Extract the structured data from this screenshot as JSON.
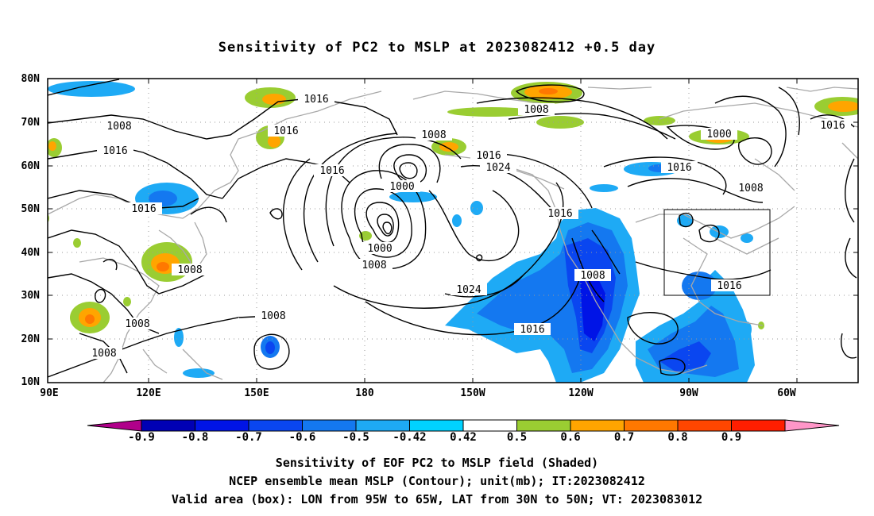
{
  "title": "Sensitivity of PC2 to MSLP at 2023082412 +0.5 day",
  "lat_labels": [
    "80N",
    "70N",
    "60N",
    "50N",
    "40N",
    "30N",
    "20N",
    "10N"
  ],
  "lon_labels": [
    "90E",
    "120E",
    "150E",
    "180",
    "150W",
    "120W",
    "90W",
    "60W"
  ],
  "contour_labels": [
    "1016",
    "1008",
    "1016",
    "1016",
    "1016",
    "1008",
    "1016",
    "1000",
    "1016",
    "1024",
    "1016",
    "1016",
    "1008",
    "1000",
    "1016",
    "1008",
    "1000",
    "1008",
    "1008",
    "1024",
    "1008",
    "1016",
    "1016",
    "1008",
    "1008",
    "1016",
    "1008"
  ],
  "colorbar": {
    "labels": [
      "-0.9",
      "-0.8",
      "-0.7",
      "-0.6",
      "-0.5",
      "-0.42",
      "0.42",
      "0.5",
      "0.6",
      "0.7",
      "0.8",
      "0.9"
    ],
    "colors": [
      "#b0008a",
      "#0000b4",
      "#0014e6",
      "#0a46f0",
      "#1478f0",
      "#1eaaf5",
      "#00d2ff",
      "#ffffff",
      "#9acd32",
      "#ffa500",
      "#ff7800",
      "#ff4600",
      "#ff1e00",
      "#ff96c8"
    ]
  },
  "caption": {
    "line1": "Sensitivity of EOF PC2 to MSLP field (Shaded)",
    "line2": "NCEP ensemble mean MSLP (Contour); unit(mb); IT:2023082412",
    "line3": "Valid area (box): LON from 95W to 65W, LAT from 30N to 50N; VT: 2023083012"
  }
}
